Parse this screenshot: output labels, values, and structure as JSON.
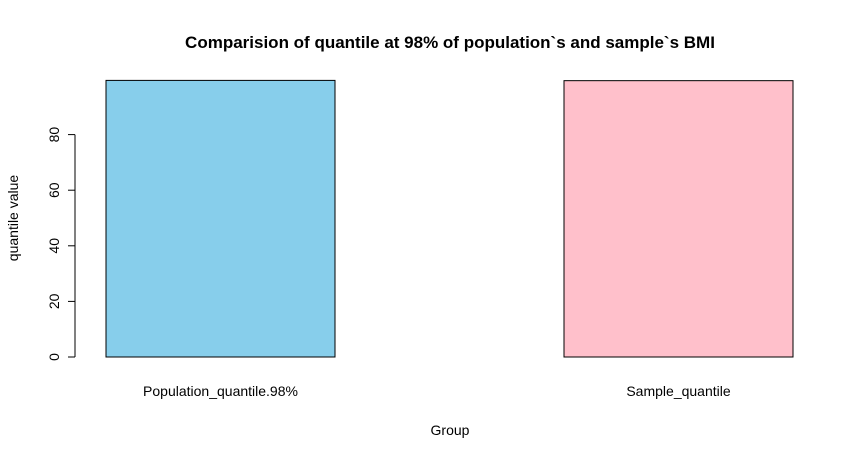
{
  "chart_data": {
    "type": "bar",
    "title": "Comparision of quantile at 98% of population`s and sample`s BMI",
    "xlabel": "Group",
    "ylabel": "quantile value",
    "categories": [
      "Population_quantile.98%",
      "Sample_quantile"
    ],
    "values": [
      99.5,
      99.4
    ],
    "colors": [
      "#87CEEB",
      "#FFC0CB"
    ],
    "bar_border_color": "#000000",
    "ylim": [
      0,
      100
    ],
    "yticks": [
      0,
      20,
      40,
      60,
      80
    ],
    "ytick_labels": [
      "0",
      "20",
      "40",
      "60",
      "80"
    ],
    "grid": false,
    "legend": "none"
  }
}
